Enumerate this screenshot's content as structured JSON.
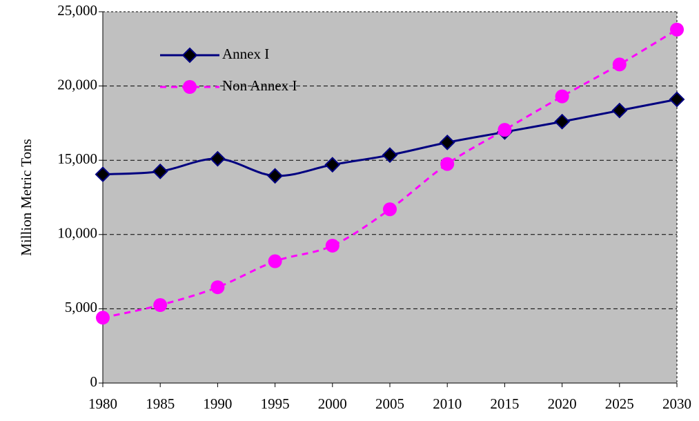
{
  "chart_data": {
    "type": "line",
    "y_label": "Million Metric Tons",
    "x": [
      1980,
      1985,
      1990,
      1995,
      2000,
      2005,
      2010,
      2015,
      2020,
      2025,
      2030
    ],
    "series": [
      {
        "name": "Annex I",
        "color": "#000080",
        "marker": "diamond",
        "dash": false,
        "values": [
          14050,
          14250,
          15100,
          13950,
          14700,
          15350,
          16200,
          16900,
          17600,
          18350,
          19100
        ]
      },
      {
        "name": "Non Annex I",
        "color": "#ff00ff",
        "marker": "circle",
        "dash": true,
        "values": [
          4400,
          5250,
          6450,
          8200,
          9250,
          11700,
          14750,
          17050,
          19300,
          21450,
          23800
        ]
      }
    ],
    "xlim": [
      1980,
      2030
    ],
    "xticks": [
      1980,
      1985,
      1990,
      1995,
      2000,
      2005,
      2010,
      2015,
      2020,
      2025,
      2030
    ],
    "ylim": [
      0,
      25000
    ],
    "yticks": [
      0,
      {
        "value": 5000,
        "label": "5,000"
      },
      {
        "value": 10000,
        "label": "10,000"
      },
      {
        "value": 15000,
        "label": "15,000"
      },
      {
        "value": 20000,
        "label": "20,000"
      },
      {
        "value": 25000,
        "label": "25,000"
      }
    ],
    "grid": true,
    "smooth": true,
    "legend": "upper left"
  }
}
